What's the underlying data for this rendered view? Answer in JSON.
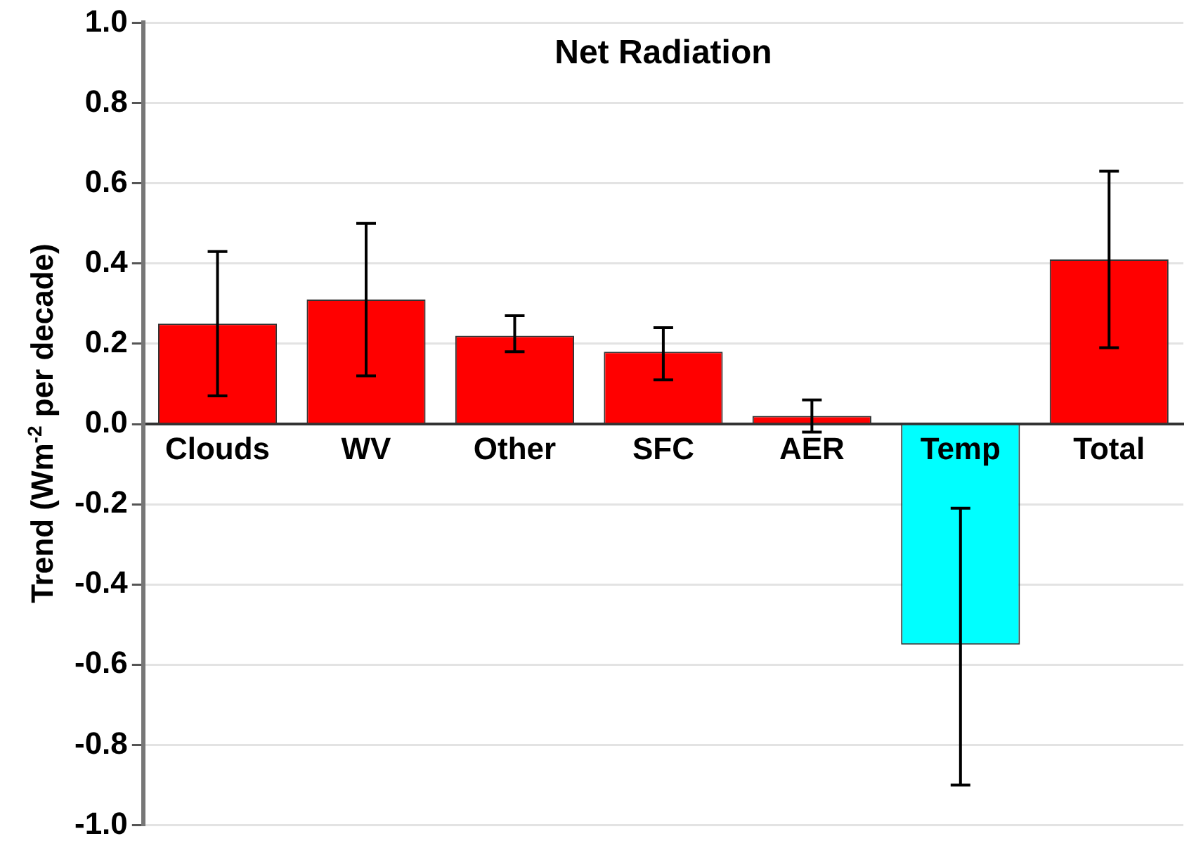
{
  "chart_data": {
    "type": "bar",
    "title": "Net Radiation",
    "ylabel": "Trend (Wm$^{-2}$ per decade)",
    "categories": [
      "Clouds",
      "WV",
      "Other",
      "SFC",
      "AER",
      "Temp",
      "Total"
    ],
    "values": [
      0.25,
      0.31,
      0.22,
      0.18,
      0.02,
      -0.55,
      0.41
    ],
    "colors": [
      "#ff0000",
      "#ff0000",
      "#ff0000",
      "#ff0000",
      "#ff0000",
      "#00ffff",
      "#ff0000"
    ],
    "errors": [
      [
        0.07,
        0.43
      ],
      [
        0.12,
        0.5
      ],
      [
        0.18,
        0.27
      ],
      [
        0.11,
        0.24
      ],
      [
        -0.02,
        0.06
      ],
      [
        -0.9,
        -0.21
      ],
      [
        0.19,
        0.63
      ]
    ],
    "ylim": [
      -1.0,
      1.0
    ],
    "yticks": [
      {
        "value": -1.0,
        "label": "-1.0"
      },
      {
        "value": -0.8,
        "label": "-0.8"
      },
      {
        "value": -0.6,
        "label": "-0.6"
      },
      {
        "value": -0.4,
        "label": "-0.4"
      },
      {
        "value": -0.2,
        "label": "-0.2"
      },
      {
        "value": 0,
        "label": "0.0"
      },
      {
        "value": 0.2,
        "label": "0.2"
      },
      {
        "value": 0.4,
        "label": "0.4"
      },
      {
        "value": 0.6,
        "label": "0.6"
      },
      {
        "value": 0.8,
        "label": "0.8"
      },
      {
        "value": 1.0,
        "label": "1.0"
      }
    ],
    "grid": "y",
    "legend": false
  }
}
